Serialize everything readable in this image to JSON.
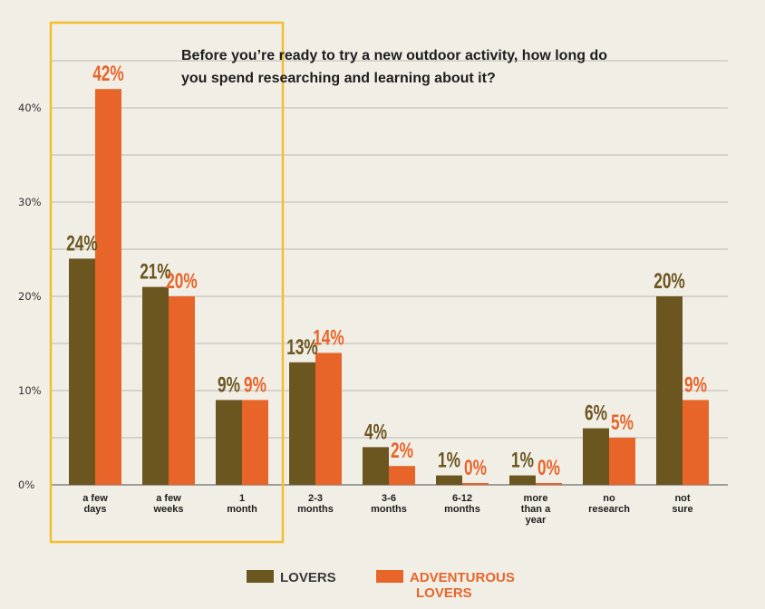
{
  "chart_data": {
    "type": "bar",
    "title_lines": [
      "Before you’re ready to try a new outdoor activity, how long do",
      "you spend researching and learning about it?"
    ],
    "categories": [
      [
        "a few",
        "days"
      ],
      [
        "a few",
        "weeks"
      ],
      [
        "1",
        "month"
      ],
      [
        "2-3",
        "months"
      ],
      [
        "3-6",
        "months"
      ],
      [
        "6-12",
        "months"
      ],
      [
        "more",
        "than a",
        "year"
      ],
      [
        "no",
        "research"
      ],
      [
        "not",
        "sure"
      ]
    ],
    "series": [
      {
        "name": "LOVERS",
        "color": "#6b5620",
        "values": [
          24,
          21,
          9,
          13,
          4,
          1,
          1,
          6,
          20
        ],
        "labels": [
          "24%",
          "21%",
          "9%",
          "13%",
          "4%",
          "1%",
          "1%",
          "6%",
          "20%"
        ]
      },
      {
        "name": "ADVENTUROUS LOVERS",
        "color": "#e8652a",
        "values": [
          42,
          20,
          9,
          14,
          2,
          0,
          0,
          5,
          9
        ],
        "labels": [
          "42%",
          "20%",
          "9%",
          "14%",
          "2%",
          "0%",
          "0%",
          "5%",
          "9%"
        ]
      }
    ],
    "yticks": [
      0,
      10,
      20,
      30,
      40
    ],
    "ytick_labels": [
      "0%",
      "10%",
      "20%",
      "30%",
      "40%"
    ],
    "ylim": [
      0,
      45
    ],
    "highlight_categories": [
      0,
      1,
      2
    ],
    "highlight_color": "#f2bd2e",
    "legend": {
      "position": "bottom",
      "entries": [
        {
          "lines": [
            "LOVERS"
          ],
          "color": "#6b5620",
          "text_color": "#3a3a3a"
        },
        {
          "lines": [
            "ADVENTUROUS",
            "LOVERS"
          ],
          "color": "#e8652a",
          "text_color": "#e8652a"
        }
      ]
    }
  }
}
